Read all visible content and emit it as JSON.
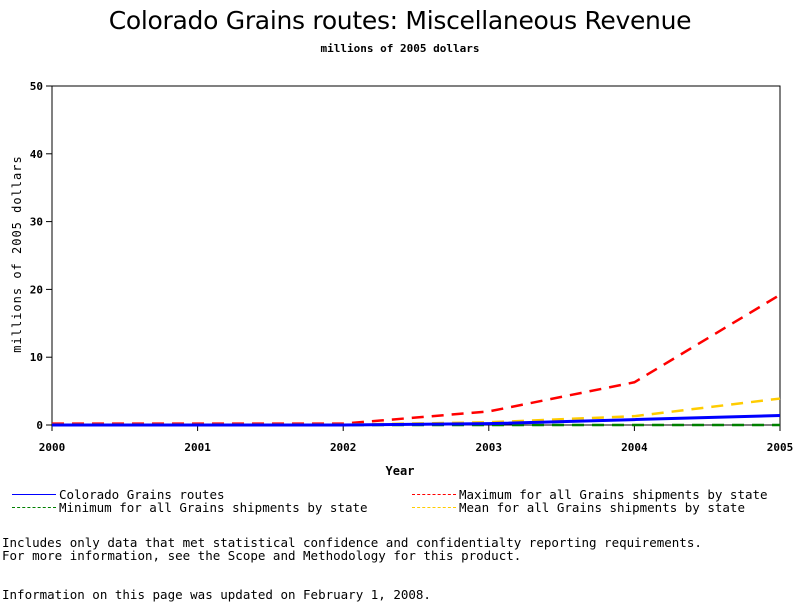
{
  "chart_data": {
    "type": "line",
    "title": "Colorado Grains routes: Miscellaneous Revenue",
    "subtitle": "millions of 2005 dollars",
    "xlabel": "Year",
    "ylabel": "millions of 2005 dollars",
    "x": [
      2000,
      2001,
      2002,
      2003,
      2004,
      2005
    ],
    "x_ticks": [
      "2000",
      "2001",
      "2002",
      "2003",
      "2004",
      "2005"
    ],
    "y_ticks": [
      "0",
      "10",
      "20",
      "30",
      "40",
      "50"
    ],
    "xlim": [
      2000,
      2005
    ],
    "ylim": [
      0,
      50
    ],
    "grid": false,
    "legend_position": "bottom",
    "series": [
      {
        "name": "Colorado Grains routes",
        "values": [
          0.0,
          0.0,
          0.0,
          0.2,
          0.8,
          1.4
        ],
        "color": "#0000ff",
        "style": "solid"
      },
      {
        "name": "Maximum for all Grains shipments by state",
        "values": [
          0.2,
          0.2,
          0.2,
          2.0,
          6.3,
          19.2
        ],
        "color": "#ff0000",
        "style": "dashed"
      },
      {
        "name": "Minimum for all Grains shipments by state",
        "values": [
          0.0,
          0.0,
          0.0,
          0.0,
          0.0,
          0.0
        ],
        "color": "#008000",
        "style": "dashed"
      },
      {
        "name": "Mean for all Grains shipments by state",
        "values": [
          0.05,
          0.05,
          0.05,
          0.4,
          1.3,
          3.9
        ],
        "color": "#ffcc00",
        "style": "dashed"
      }
    ]
  },
  "notes": {
    "line1": "Includes only data that met statistical confidence and confidentialty reporting requirements.",
    "line2": "For more information, see the Scope and Methodology for this product.",
    "updated": "Information on this page was updated on February 1, 2008."
  }
}
